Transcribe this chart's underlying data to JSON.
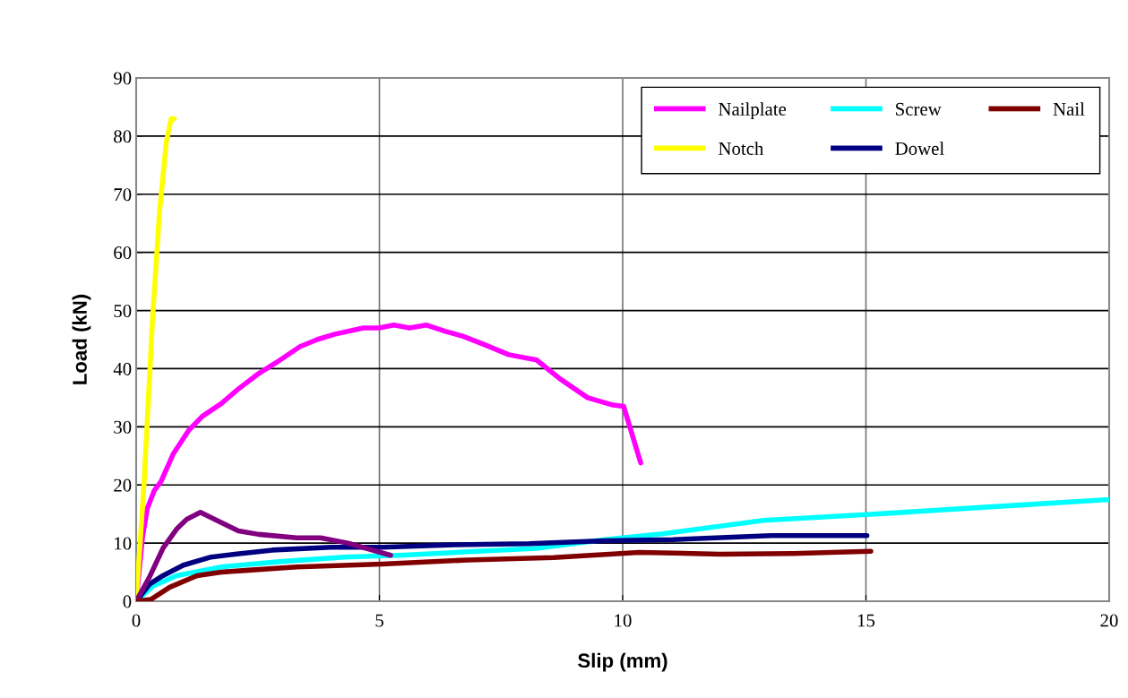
{
  "chart_data": {
    "type": "line",
    "xlabel": "Slip (mm)",
    "ylabel": "Load (kN)",
    "xlim": [
      0,
      20
    ],
    "ylim": [
      0,
      90
    ],
    "xticks": [
      0,
      5,
      10,
      15,
      20
    ],
    "yticks": [
      0,
      10,
      20,
      30,
      40,
      50,
      60,
      70,
      80,
      90
    ],
    "grid": true,
    "legend": "top right",
    "marker": "none",
    "line_style": "solid",
    "series": [
      {
        "name": "Nailplate",
        "color": "#ff00ff",
        "x": [
          0,
          0.13,
          0.23,
          0.37,
          0.51,
          0.76,
          1.08,
          1.36,
          1.75,
          2.1,
          2.49,
          2.87,
          3.37,
          3.72,
          4.07,
          4.67,
          4.99,
          5.3,
          5.62,
          5.97,
          6.36,
          6.71,
          7.17,
          7.66,
          8.23,
          8.72,
          9.28,
          9.77,
          10.02,
          10.37
        ],
        "values": [
          0,
          11,
          16,
          19,
          20.6,
          25.3,
          29.4,
          31.8,
          34,
          36.5,
          39,
          41,
          43.8,
          45,
          45.9,
          47,
          47,
          47.5,
          47,
          47.5,
          46.4,
          45.6,
          44.1,
          42.4,
          41.5,
          38.2,
          35,
          33.8,
          33.5,
          23.8
        ]
      },
      {
        "name": "Notch",
        "color": "#ffff00",
        "x": [
          0,
          0.16,
          0.34,
          0.48,
          0.62,
          0.72,
          0.78
        ],
        "values": [
          0,
          20,
          49,
          67,
          79,
          83,
          83
        ]
      },
      {
        "name": "Screw",
        "color": "#00ffff",
        "x": [
          0,
          0.34,
          0.83,
          1.75,
          2.94,
          4.28,
          5.41,
          6.82,
          8.23,
          9.63,
          10.82,
          12.9,
          15.02,
          17.5,
          20
        ],
        "values": [
          0,
          2.6,
          4.4,
          5.9,
          6.8,
          7.6,
          7.9,
          8.5,
          9.1,
          10.6,
          11.6,
          13.9,
          14.9,
          16.2,
          17.5
        ]
      },
      {
        "name": "Dowel",
        "color": "#000080",
        "x": [
          0,
          0.27,
          0.55,
          0.97,
          1.54,
          2.03,
          2.8,
          4,
          5.06,
          6.54,
          8.08,
          9.63,
          11.03,
          13.05,
          15.02
        ],
        "values": [
          0,
          2.9,
          4.4,
          6.2,
          7.6,
          8.1,
          8.8,
          9.3,
          9.3,
          9.7,
          9.9,
          10.4,
          10.6,
          11.3,
          11.3
        ]
      },
      {
        "color": "#800080",
        "x": [
          0,
          0.27,
          0.55,
          0.83,
          1.04,
          1.32,
          1.61,
          2.1,
          2.52,
          3.3,
          3.79,
          4.35,
          5.23
        ],
        "values": [
          0,
          4.1,
          9.1,
          12.4,
          14.1,
          15.3,
          14.1,
          12.1,
          11.5,
          10.9,
          10.9,
          10,
          7.9
        ]
      },
      {
        "name": "Nail",
        "color": "#800000",
        "x": [
          0,
          0.3,
          0.69,
          1.25,
          1.75,
          2.24,
          3.3,
          5.06,
          6.82,
          8.58,
          10.34,
          12,
          13.5,
          15.1
        ],
        "values": [
          0,
          0.3,
          2.4,
          4.4,
          5,
          5.3,
          5.9,
          6.4,
          7.1,
          7.5,
          8.4,
          8.1,
          8.2,
          8.6
        ]
      }
    ]
  }
}
